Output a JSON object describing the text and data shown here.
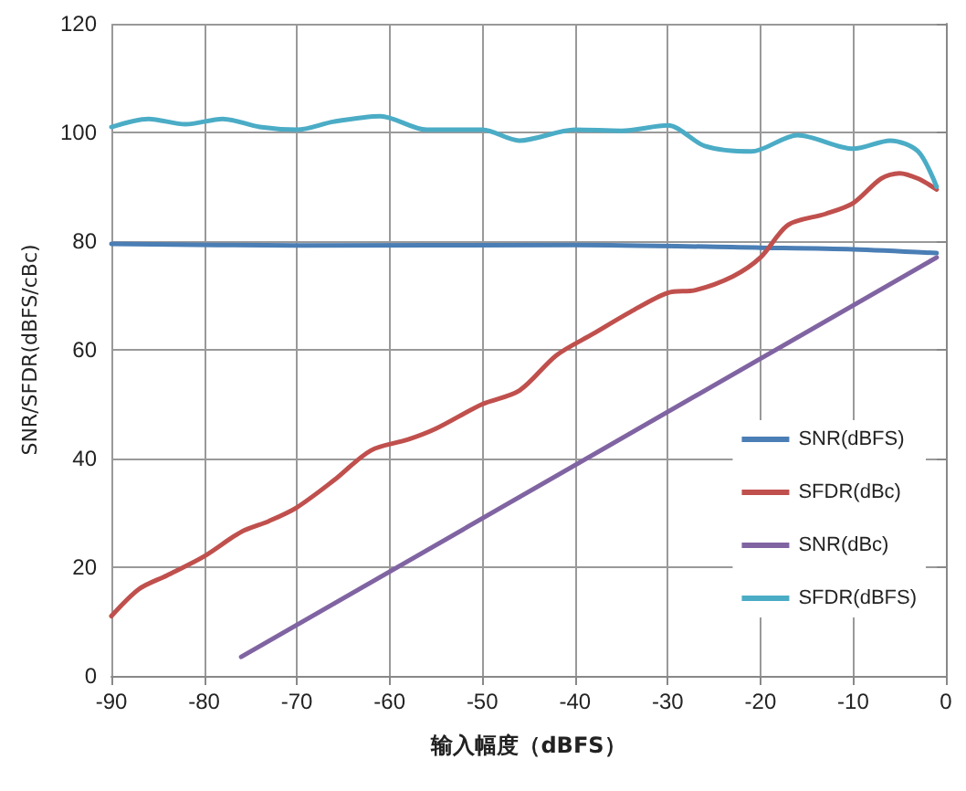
{
  "chart_data": {
    "type": "line",
    "xlabel": "输入幅度（dBFS）",
    "ylabel": "SNR/SFDR(dBFS/cBc)",
    "xlim": [
      -90,
      0
    ],
    "xticks": [
      -90,
      -80,
      -70,
      -60,
      -50,
      -40,
      -30,
      -20,
      -10,
      0
    ],
    "ylim": [
      0,
      120
    ],
    "yticks": [
      0,
      20,
      40,
      60,
      80,
      100,
      120
    ],
    "grid": true,
    "legend": "right",
    "marker": "none",
    "line_style": "solid",
    "series": [
      {
        "name": "SNR(dBFS)",
        "color": "#4a7eb5",
        "x": [
          -90,
          -70,
          -40,
          -20,
          -10,
          -1
        ],
        "values": [
          79.5,
          79.2,
          79.3,
          78.8,
          78.5,
          77.8
        ]
      },
      {
        "name": "SFDR(dBc)",
        "color": "#c0504d",
        "x": [
          -90,
          -87,
          -84,
          -80,
          -76,
          -73,
          -70,
          -66,
          -62,
          -58,
          -55,
          -50,
          -46,
          -42,
          -38,
          -34,
          -30,
          -27,
          -23,
          -20,
          -17,
          -13,
          -10,
          -7,
          -5,
          -3,
          -1
        ],
        "values": [
          11,
          16,
          18.5,
          22,
          26.5,
          28.5,
          31,
          36,
          41.5,
          43.5,
          45.5,
          50,
          52.5,
          59,
          63,
          67,
          70.5,
          71,
          73.5,
          77,
          83,
          85,
          87,
          91.5,
          92.5,
          91.5,
          89.5
        ]
      },
      {
        "name": "SNR(dBc)",
        "color": "#8064a2",
        "x": [
          -76,
          -1
        ],
        "values": [
          3.5,
          77
        ]
      },
      {
        "name": "SFDR(dBFS)",
        "color": "#4bacc6",
        "x": [
          -90,
          -86,
          -82,
          -78,
          -74,
          -70,
          -66,
          -61,
          -56,
          -50,
          -46,
          -40,
          -35,
          -30,
          -26,
          -21,
          -16,
          -10,
          -6,
          -3,
          -1
        ],
        "values": [
          101,
          102.5,
          101.5,
          102.5,
          101,
          100.5,
          102,
          103,
          100.5,
          100.5,
          98.5,
          100.5,
          100.3,
          101.3,
          97.5,
          96.5,
          99.5,
          97,
          98.5,
          96.5,
          90
        ]
      }
    ]
  }
}
